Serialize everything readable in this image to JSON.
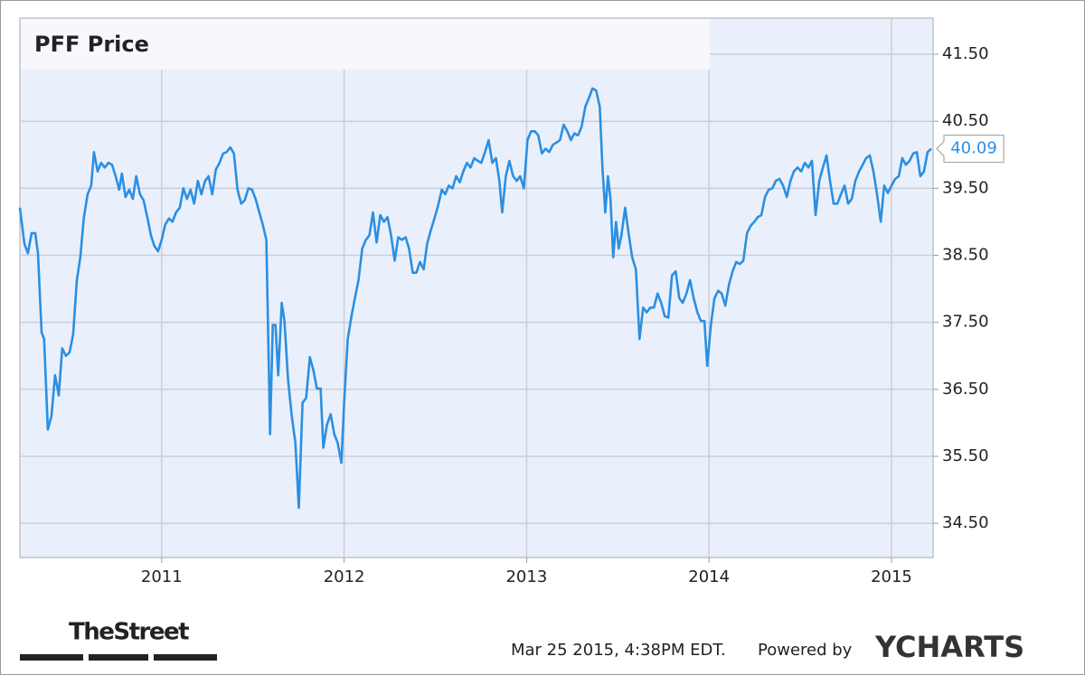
{
  "chart_data": {
    "type": "line",
    "title": "PFF Price",
    "x": [
      2010.223,
      2010.248,
      2010.267,
      2010.287,
      2010.307,
      2010.322,
      2010.342,
      2010.356,
      2010.376,
      2010.396,
      2010.416,
      2010.436,
      2010.455,
      2010.475,
      2010.495,
      2010.515,
      2010.535,
      2010.554,
      2010.574,
      2010.594,
      2010.614,
      2010.629,
      2010.649,
      2010.668,
      2010.688,
      2010.708,
      2010.728,
      2010.748,
      2010.767,
      2010.782,
      2010.802,
      2010.822,
      2010.842,
      2010.861,
      2010.881,
      2010.901,
      2010.921,
      2010.941,
      2010.96,
      2010.98,
      2011.0,
      2011.02,
      2011.04,
      2011.059,
      2011.079,
      2011.099,
      2011.119,
      2011.139,
      2011.158,
      2011.178,
      2011.198,
      2011.218,
      2011.238,
      2011.257,
      2011.277,
      2011.297,
      2011.317,
      2011.337,
      2011.356,
      2011.376,
      2011.396,
      2011.416,
      2011.436,
      2011.455,
      2011.475,
      2011.495,
      2011.515,
      2011.535,
      2011.554,
      2011.574,
      2011.594,
      2011.609,
      2011.624,
      2011.639,
      2011.658,
      2011.673,
      2011.693,
      2011.713,
      2011.733,
      2011.752,
      2011.772,
      2011.792,
      2011.812,
      2011.832,
      2011.851,
      2011.871,
      2011.886,
      2011.906,
      2011.926,
      2011.946,
      2011.965,
      2011.985,
      2012.0,
      2012.02,
      2012.04,
      2012.059,
      2012.079,
      2012.099,
      2012.119,
      2012.139,
      2012.158,
      2012.178,
      2012.198,
      2012.218,
      2012.238,
      2012.257,
      2012.277,
      2012.297,
      2012.317,
      2012.337,
      2012.356,
      2012.376,
      2012.396,
      2012.416,
      2012.436,
      2012.455,
      2012.475,
      2012.495,
      2012.515,
      2012.535,
      2012.554,
      2012.574,
      2012.594,
      2012.614,
      2012.634,
      2012.653,
      2012.673,
      2012.693,
      2012.713,
      2012.733,
      2012.752,
      2012.772,
      2012.792,
      2012.812,
      2012.832,
      2012.851,
      2012.866,
      2012.886,
      2012.906,
      2012.926,
      2012.946,
      2012.965,
      2012.985,
      2013.005,
      2013.025,
      2013.045,
      2013.064,
      2013.084,
      2013.104,
      2013.124,
      2013.144,
      2013.163,
      2013.183,
      2013.203,
      2013.223,
      2013.243,
      2013.262,
      2013.282,
      2013.302,
      2013.322,
      2013.342,
      2013.361,
      2013.381,
      2013.401,
      2013.416,
      2013.431,
      2013.446,
      2013.46,
      2013.475,
      2013.49,
      2013.505,
      2013.52,
      2013.54,
      2013.559,
      2013.579,
      2013.599,
      2013.619,
      2013.639,
      2013.658,
      2013.678,
      2013.698,
      2013.718,
      2013.738,
      2013.757,
      2013.777,
      2013.797,
      2013.817,
      2013.837,
      2013.856,
      2013.876,
      2013.896,
      2013.916,
      2013.936,
      2013.955,
      2013.975,
      2013.99,
      2014.01,
      2014.03,
      2014.05,
      2014.069,
      2014.089,
      2014.109,
      2014.129,
      2014.149,
      2014.168,
      2014.188,
      2014.208,
      2014.228,
      2014.248,
      2014.267,
      2014.287,
      2014.307,
      2014.327,
      2014.347,
      2014.366,
      2014.386,
      2014.406,
      2014.426,
      2014.446,
      2014.465,
      2014.485,
      2014.505,
      2014.525,
      2014.545,
      2014.564,
      2014.584,
      2014.604,
      2014.624,
      2014.644,
      2014.663,
      2014.683,
      2014.703,
      2014.723,
      2014.743,
      2014.762,
      2014.782,
      2014.802,
      2014.822,
      2014.842,
      2014.861,
      2014.881,
      2014.901,
      2014.921,
      2014.941,
      2014.96,
      2014.98,
      2015.0,
      2015.02,
      2015.04,
      2015.059,
      2015.079,
      2015.099,
      2015.119,
      2015.139,
      2015.158,
      2015.178,
      2015.198,
      2015.218
    ],
    "series": [
      {
        "name": "PFF Price",
        "color": "#2b8fe2",
        "values": [
          39.21,
          38.67,
          38.53,
          38.83,
          38.83,
          38.53,
          37.35,
          37.25,
          35.9,
          36.1,
          36.71,
          36.41,
          37.11,
          37.0,
          37.05,
          37.32,
          38.13,
          38.47,
          39.07,
          39.41,
          39.54,
          40.04,
          39.75,
          39.88,
          39.81,
          39.88,
          39.85,
          39.68,
          39.48,
          39.72,
          39.37,
          39.48,
          39.34,
          39.68,
          39.41,
          39.32,
          39.07,
          38.8,
          38.64,
          38.56,
          38.73,
          38.96,
          39.05,
          39.0,
          39.14,
          39.21,
          39.5,
          39.34,
          39.48,
          39.27,
          39.61,
          39.41,
          39.61,
          39.68,
          39.41,
          39.78,
          39.88,
          40.02,
          40.04,
          40.11,
          40.02,
          39.48,
          39.27,
          39.32,
          39.5,
          39.48,
          39.34,
          39.14,
          38.96,
          38.73,
          35.83,
          37.46,
          37.46,
          36.71,
          37.79,
          37.52,
          36.64,
          36.1,
          35.7,
          34.73,
          36.3,
          36.37,
          36.98,
          36.78,
          36.51,
          36.51,
          35.63,
          35.97,
          36.13,
          35.83,
          35.7,
          35.4,
          36.3,
          37.25,
          37.59,
          37.86,
          38.13,
          38.6,
          38.73,
          38.8,
          39.14,
          38.69,
          39.1,
          39.0,
          39.07,
          38.8,
          38.42,
          38.77,
          38.73,
          38.77,
          38.6,
          38.24,
          38.24,
          38.4,
          38.29,
          38.67,
          38.87,
          39.05,
          39.24,
          39.48,
          39.41,
          39.54,
          39.5,
          39.68,
          39.59,
          39.75,
          39.88,
          39.81,
          39.95,
          39.91,
          39.88,
          40.04,
          40.22,
          39.88,
          39.95,
          39.61,
          39.14,
          39.68,
          39.91,
          39.68,
          39.61,
          39.68,
          39.5,
          40.22,
          40.35,
          40.35,
          40.29,
          40.02,
          40.09,
          40.04,
          40.15,
          40.18,
          40.22,
          40.45,
          40.35,
          40.22,
          40.32,
          40.29,
          40.42,
          40.72,
          40.85,
          40.99,
          40.96,
          40.72,
          39.81,
          39.14,
          39.68,
          39.34,
          38.47,
          39.0,
          38.6,
          38.8,
          39.21,
          38.83,
          38.47,
          38.29,
          37.25,
          37.72,
          37.65,
          37.72,
          37.72,
          37.93,
          37.79,
          37.59,
          37.57,
          38.2,
          38.26,
          37.86,
          37.79,
          37.93,
          38.13,
          37.86,
          37.65,
          37.52,
          37.52,
          36.85,
          37.46,
          37.86,
          37.97,
          37.93,
          37.75,
          38.06,
          38.26,
          38.4,
          38.37,
          38.42,
          38.83,
          38.94,
          39.0,
          39.07,
          39.1,
          39.37,
          39.48,
          39.5,
          39.61,
          39.64,
          39.54,
          39.37,
          39.61,
          39.75,
          39.81,
          39.75,
          39.88,
          39.81,
          39.91,
          39.1,
          39.61,
          39.81,
          39.99,
          39.61,
          39.27,
          39.27,
          39.41,
          39.54,
          39.27,
          39.34,
          39.61,
          39.75,
          39.85,
          39.95,
          39.99,
          39.75,
          39.41,
          39.0,
          39.54,
          39.43,
          39.54,
          39.64,
          39.68,
          39.95,
          39.85,
          39.91,
          40.02,
          40.04,
          39.68,
          39.75,
          40.04,
          40.09
        ]
      }
    ],
    "xlim": [
      2010.223,
      2015.228
    ],
    "xticks": [
      2011,
      2012,
      2013,
      2014,
      2015
    ],
    "ylim": [
      33.99,
      42.04
    ],
    "yticks": [
      {
        "value": 34.5,
        "label": "34.50"
      },
      {
        "value": 35.5,
        "label": "35.50"
      },
      {
        "value": 36.5,
        "label": "36.50"
      },
      {
        "value": 37.5,
        "label": "37.50"
      },
      {
        "value": 38.5,
        "label": "38.50"
      },
      {
        "value": 39.5,
        "label": "39.50"
      },
      {
        "value": 40.5,
        "label": "40.50"
      },
      {
        "value": 41.5,
        "label": "41.50"
      }
    ],
    "grid": true,
    "axis_side": "right",
    "annotation": "40.09",
    "brand": "TheStreet",
    "timestamp": "Mar 25 2015, 4:38PM EDT.",
    "powered_by": "Powered by",
    "provider": "YCHARTS"
  }
}
